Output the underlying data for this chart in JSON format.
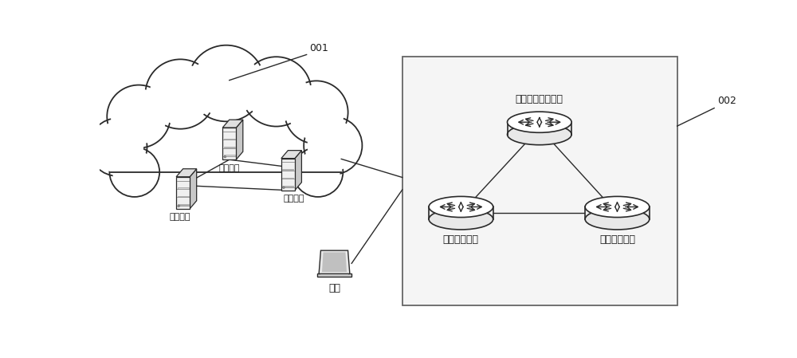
{
  "bg_color": "#ffffff",
  "cloud_label": "001",
  "service_box_label": "002",
  "node_labels": [
    "存储节点",
    "存储节点",
    "存储节点"
  ],
  "user_label": "用户",
  "service_labels": [
    "关系型数据库服务",
    "消息队列服务",
    "文件遍历服务"
  ],
  "line_color": "#2a2a2a",
  "text_color": "#1a1a1a"
}
